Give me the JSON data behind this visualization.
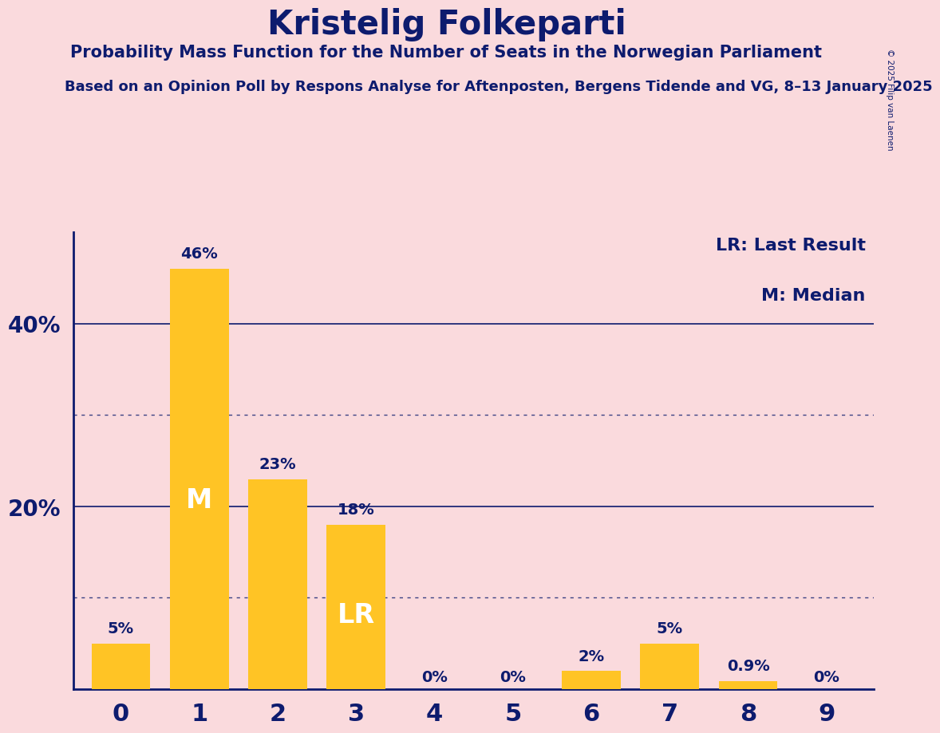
{
  "title": "Kristelig Folkeparti",
  "subtitle1": "Probability Mass Function for the Number of Seats in the Norwegian Parliament",
  "subtitle2": "Based on an Opinion Poll by Respons Analyse for Aftenposten, Bergens Tidende and VG, 8–13 January 2025",
  "copyright": "© 2025 Filip van Laenen",
  "categories": [
    0,
    1,
    2,
    3,
    4,
    5,
    6,
    7,
    8,
    9
  ],
  "values": [
    5,
    46,
    23,
    18,
    0,
    0,
    2,
    5,
    0.9,
    0
  ],
  "labels": [
    "5%",
    "46%",
    "23%",
    "18%",
    "0%",
    "0%",
    "2%",
    "5%",
    "0.9%",
    "0%"
  ],
  "bar_color": "#FFC425",
  "background_color": "#FADADD",
  "text_color": "#0D1B6E",
  "median_bar": 1,
  "lr_bar": 3,
  "ylim_max": 50,
  "solid_gridlines": [
    20,
    40
  ],
  "dotted_gridlines": [
    10,
    30
  ],
  "legend_lr": "LR: Last Result",
  "legend_m": "M: Median",
  "ytick_positions": [
    20,
    40
  ],
  "ytick_labels": [
    "20%",
    "40%"
  ]
}
